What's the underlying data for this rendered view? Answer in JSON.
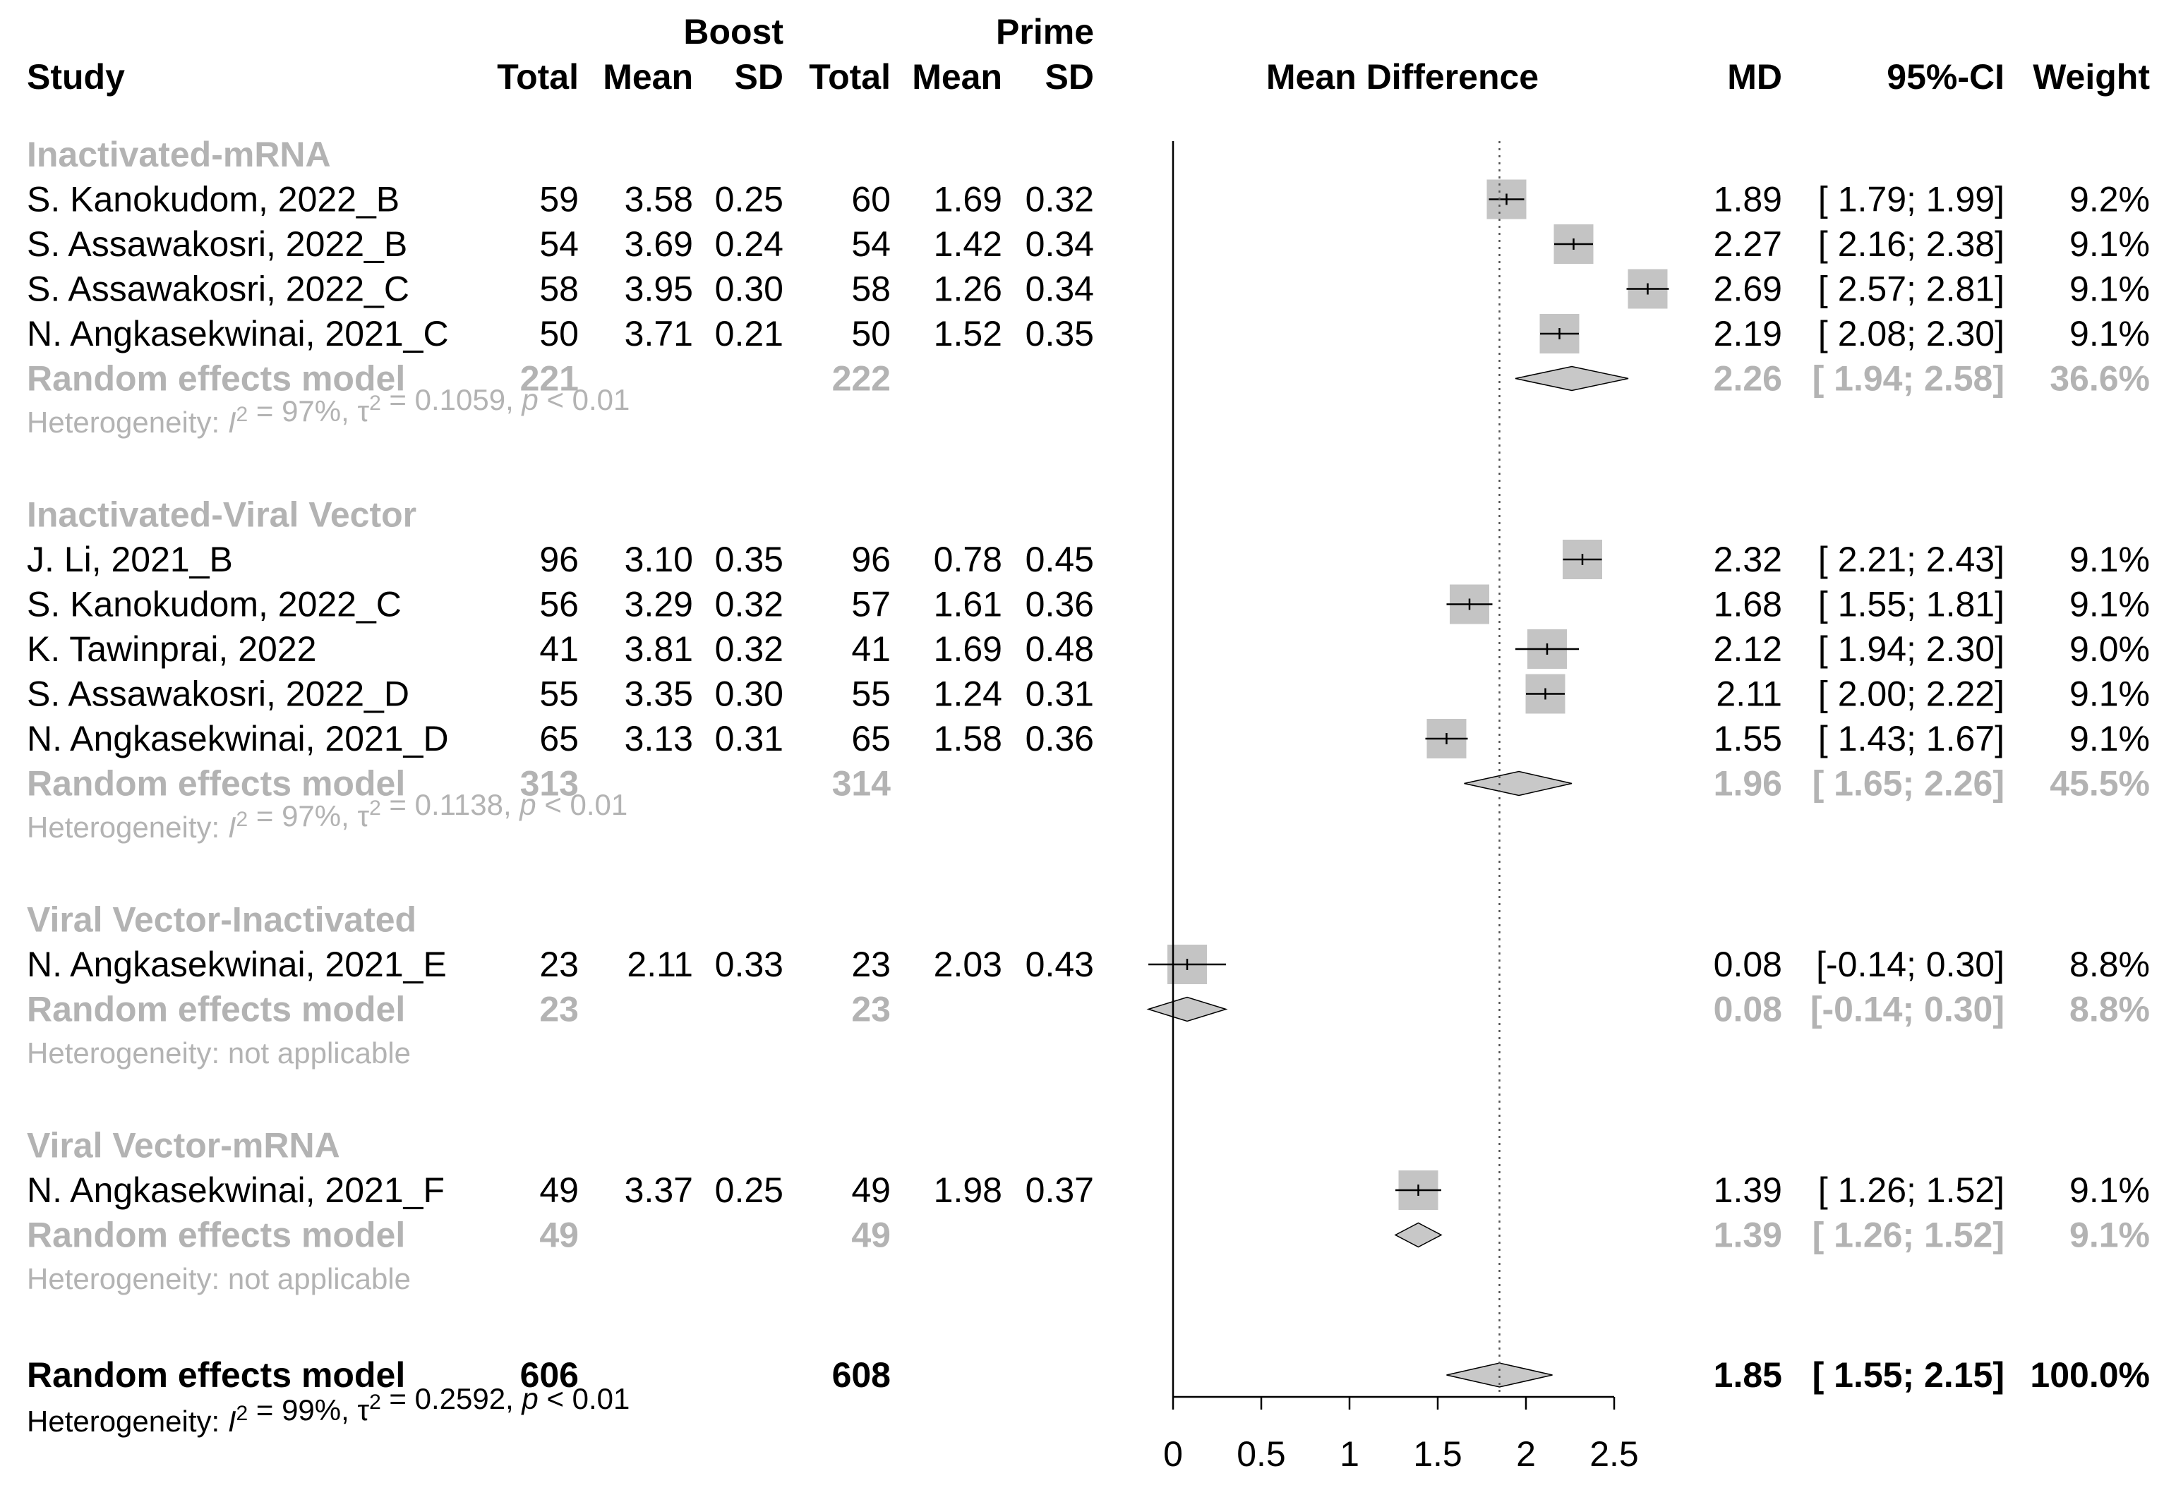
{
  "header": {
    "study": "Study",
    "boost": "Boost",
    "prime": "Prime",
    "total": "Total",
    "mean": "Mean",
    "sd": "SD",
    "mean_difference": "Mean Difference",
    "md": "MD",
    "ci": "95%-CI",
    "weight": "Weight"
  },
  "chart_data": {
    "type": "forest",
    "xlabel": "Mean Difference",
    "xlim": [
      0,
      2.5
    ],
    "xticks": [
      "0",
      "0.5",
      "1",
      "1.5",
      "2",
      "2.5"
    ],
    "overall_line": 1.85,
    "groups": [
      {
        "name": "Inactivated-mRNA",
        "studies": [
          {
            "label": "S. Kanokudom, 2022_B",
            "boost_total": "59",
            "boost_mean": "3.58",
            "boost_sd": "0.25",
            "prime_total": "60",
            "prime_mean": "1.69",
            "prime_sd": "0.32",
            "md": 1.89,
            "lo": 1.79,
            "hi": 1.99,
            "md_text": "1.89",
            "ci_text": "[ 1.79; 1.99]",
            "weight": "9.2%"
          },
          {
            "label": "S. Assawakosri, 2022_B",
            "boost_total": "54",
            "boost_mean": "3.69",
            "boost_sd": "0.24",
            "prime_total": "54",
            "prime_mean": "1.42",
            "prime_sd": "0.34",
            "md": 2.27,
            "lo": 2.16,
            "hi": 2.38,
            "md_text": "2.27",
            "ci_text": "[ 2.16; 2.38]",
            "weight": "9.1%"
          },
          {
            "label": "S. Assawakosri, 2022_C",
            "boost_total": "58",
            "boost_mean": "3.95",
            "boost_sd": "0.30",
            "prime_total": "58",
            "prime_mean": "1.26",
            "prime_sd": "0.34",
            "md": 2.69,
            "lo": 2.57,
            "hi": 2.81,
            "md_text": "2.69",
            "ci_text": "[ 2.57; 2.81]",
            "weight": "9.1%"
          },
          {
            "label": "N. Angkasekwinai, 2021_C",
            "boost_total": "50",
            "boost_mean": "3.71",
            "boost_sd": "0.21",
            "prime_total": "50",
            "prime_mean": "1.52",
            "prime_sd": "0.35",
            "md": 2.19,
            "lo": 2.08,
            "hi": 2.3,
            "md_text": "2.19",
            "ci_text": "[ 2.08; 2.30]",
            "weight": "9.1%"
          }
        ],
        "pooled": {
          "label": "Random effects model",
          "boost_total": "221",
          "prime_total": "222",
          "md": 2.26,
          "lo": 1.94,
          "hi": 2.58,
          "md_text": "2.26",
          "ci_text": "[ 1.94; 2.58]",
          "weight": "36.6%"
        },
        "heterogeneity": {
          "prefix": "Heterogeneity: ",
          "i2_sym": "I",
          "i2_val": " = 97%, ",
          "tau_sym": "τ",
          "tau_val": " = 0.1059, ",
          "p_sym": "p",
          "p_val": " < 0.01"
        }
      },
      {
        "name": "Inactivated-Viral Vector",
        "studies": [
          {
            "label": "J. Li, 2021_B",
            "boost_total": "96",
            "boost_mean": "3.10",
            "boost_sd": "0.35",
            "prime_total": "96",
            "prime_mean": "0.78",
            "prime_sd": "0.45",
            "md": 2.32,
            "lo": 2.21,
            "hi": 2.43,
            "md_text": "2.32",
            "ci_text": "[ 2.21; 2.43]",
            "weight": "9.1%"
          },
          {
            "label": "S. Kanokudom, 2022_C",
            "boost_total": "56",
            "boost_mean": "3.29",
            "boost_sd": "0.32",
            "prime_total": "57",
            "prime_mean": "1.61",
            "prime_sd": "0.36",
            "md": 1.68,
            "lo": 1.55,
            "hi": 1.81,
            "md_text": "1.68",
            "ci_text": "[ 1.55; 1.81]",
            "weight": "9.1%"
          },
          {
            "label": "K. Tawinprai, 2022",
            "boost_total": "41",
            "boost_mean": "3.81",
            "boost_sd": "0.32",
            "prime_total": "41",
            "prime_mean": "1.69",
            "prime_sd": "0.48",
            "md": 2.12,
            "lo": 1.94,
            "hi": 2.3,
            "md_text": "2.12",
            "ci_text": "[ 1.94; 2.30]",
            "weight": "9.0%"
          },
          {
            "label": "S. Assawakosri, 2022_D",
            "boost_total": "55",
            "boost_mean": "3.35",
            "boost_sd": "0.30",
            "prime_total": "55",
            "prime_mean": "1.24",
            "prime_sd": "0.31",
            "md": 2.11,
            "lo": 2.0,
            "hi": 2.22,
            "md_text": "2.11",
            "ci_text": "[ 2.00; 2.22]",
            "weight": "9.1%"
          },
          {
            "label": "N. Angkasekwinai, 2021_D",
            "boost_total": "65",
            "boost_mean": "3.13",
            "boost_sd": "0.31",
            "prime_total": "65",
            "prime_mean": "1.58",
            "prime_sd": "0.36",
            "md": 1.55,
            "lo": 1.43,
            "hi": 1.67,
            "md_text": "1.55",
            "ci_text": "[ 1.43; 1.67]",
            "weight": "9.1%"
          }
        ],
        "pooled": {
          "label": "Random effects model",
          "boost_total": "313",
          "prime_total": "314",
          "md": 1.96,
          "lo": 1.65,
          "hi": 2.26,
          "md_text": "1.96",
          "ci_text": "[ 1.65; 2.26]",
          "weight": "45.5%"
        },
        "heterogeneity": {
          "prefix": "Heterogeneity: ",
          "i2_sym": "I",
          "i2_val": " = 97%, ",
          "tau_sym": "τ",
          "tau_val": " = 0.1138, ",
          "p_sym": "p",
          "p_val": " < 0.01"
        }
      },
      {
        "name": "Viral Vector-Inactivated",
        "studies": [
          {
            "label": "N. Angkasekwinai, 2021_E",
            "boost_total": "23",
            "boost_mean": "2.11",
            "boost_sd": "0.33",
            "prime_total": "23",
            "prime_mean": "2.03",
            "prime_sd": "0.43",
            "md": 0.08,
            "lo": -0.14,
            "hi": 0.3,
            "md_text": "0.08",
            "ci_text": "[-0.14; 0.30]",
            "weight": "8.8%"
          }
        ],
        "pooled": {
          "label": "Random effects model",
          "boost_total": "23",
          "prime_total": "23",
          "md": 0.08,
          "lo": -0.14,
          "hi": 0.3,
          "md_text": "0.08",
          "ci_text": "[-0.14; 0.30]",
          "weight": "8.8%"
        },
        "heterogeneity": {
          "text": "Heterogeneity: not applicable"
        }
      },
      {
        "name": "Viral Vector-mRNA",
        "studies": [
          {
            "label": "N. Angkasekwinai, 2021_F",
            "boost_total": "49",
            "boost_mean": "3.37",
            "boost_sd": "0.25",
            "prime_total": "49",
            "prime_mean": "1.98",
            "prime_sd": "0.37",
            "md": 1.39,
            "lo": 1.26,
            "hi": 1.52,
            "md_text": "1.39",
            "ci_text": "[ 1.26; 1.52]",
            "weight": "9.1%"
          }
        ],
        "pooled": {
          "label": "Random effects model",
          "boost_total": "49",
          "prime_total": "49",
          "md": 1.39,
          "lo": 1.26,
          "hi": 1.52,
          "md_text": "1.39",
          "ci_text": "[ 1.26; 1.52]",
          "weight": "9.1%"
        },
        "heterogeneity": {
          "text": "Heterogeneity: not applicable"
        }
      }
    ],
    "overall": {
      "label": "Random effects model",
      "boost_total": "606",
      "prime_total": "608",
      "md": 1.85,
      "lo": 1.55,
      "hi": 2.15,
      "md_text": "1.85",
      "ci_text": "[ 1.55; 2.15]",
      "weight": "100.0%"
    },
    "overall_heterogeneity": {
      "prefix": "Heterogeneity: ",
      "i2_sym": "I",
      "i2_val": " = 99%, ",
      "tau_sym": "τ",
      "tau_val": " = 0.2592, ",
      "p_sym": "p",
      "p_val": " < 0.01"
    }
  }
}
